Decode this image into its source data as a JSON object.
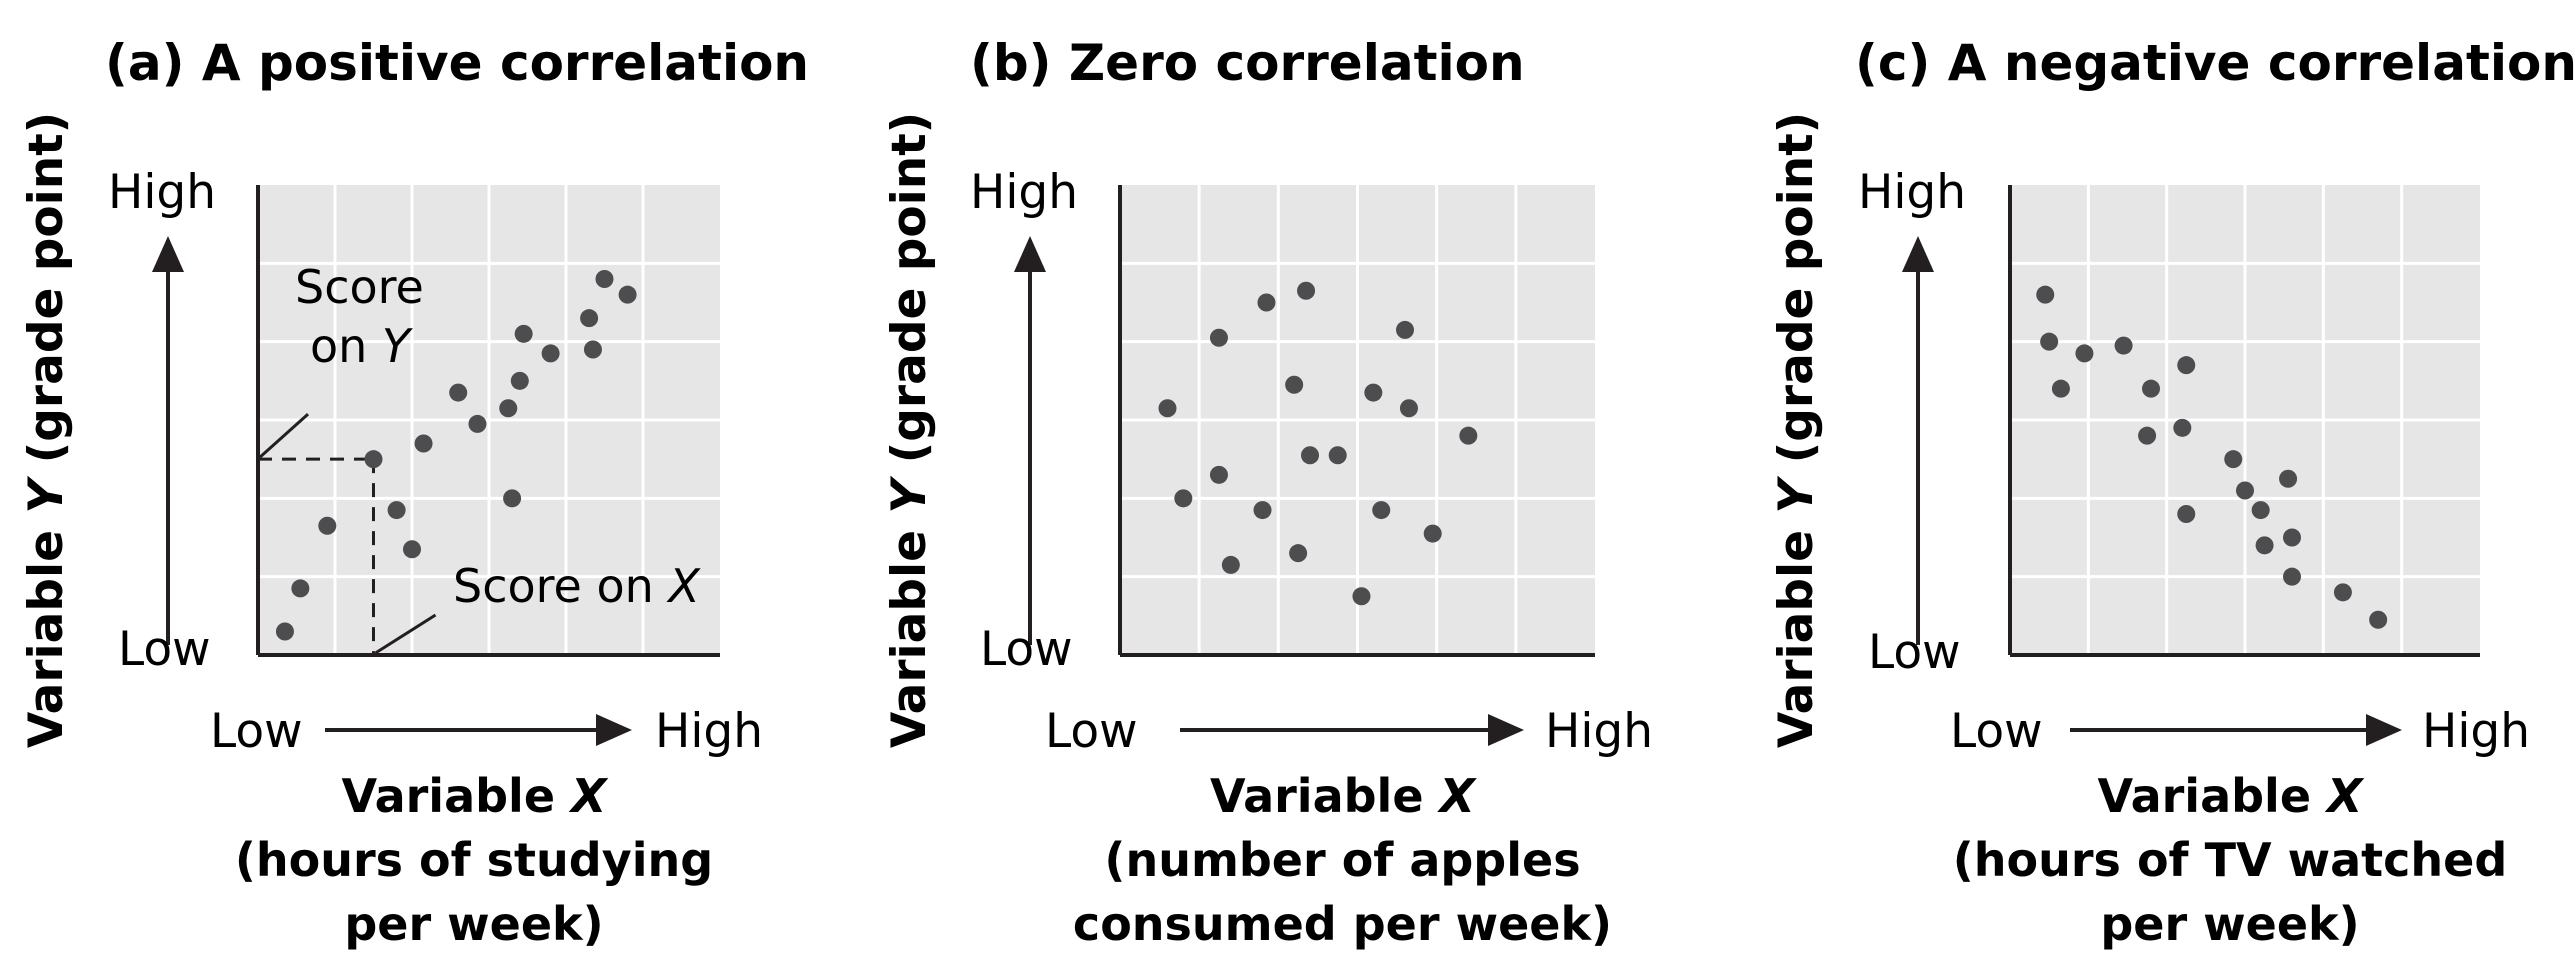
{
  "chart_data": [
    {
      "type": "scatter",
      "panel_label": "(a)",
      "title": "A positive correlation",
      "ylabel": {
        "prefix": "Variable ",
        "var": "Y",
        "suffix": " (grade point)"
      },
      "xlabel": {
        "prefix": "Variable ",
        "var": "X",
        "line2": "(hours of studying",
        "line3": "per week)"
      },
      "y_ticks": {
        "high": "High",
        "low": "Low"
      },
      "x_ticks": {
        "low": "Low",
        "high": "High"
      },
      "xlim": [
        0,
        6
      ],
      "ylim": [
        0,
        6
      ],
      "grid": true,
      "annotations": {
        "score_y_line1": "Score",
        "score_y_line2_prefix": "on ",
        "score_y_var": "Y",
        "score_x_prefix": "Score on ",
        "score_x_var": "X",
        "marked_point": {
          "x": 1.5,
          "y": 2.5
        }
      },
      "points": [
        {
          "x": 0.35,
          "y": 0.3
        },
        {
          "x": 0.55,
          "y": 0.85
        },
        {
          "x": 0.9,
          "y": 1.65
        },
        {
          "x": 1.5,
          "y": 2.5
        },
        {
          "x": 1.8,
          "y": 1.85
        },
        {
          "x": 2.0,
          "y": 1.35
        },
        {
          "x": 2.15,
          "y": 2.7
        },
        {
          "x": 2.6,
          "y": 3.35
        },
        {
          "x": 2.85,
          "y": 2.95
        },
        {
          "x": 3.25,
          "y": 3.15
        },
        {
          "x": 3.3,
          "y": 2.0
        },
        {
          "x": 3.4,
          "y": 3.5
        },
        {
          "x": 3.45,
          "y": 4.1
        },
        {
          "x": 3.8,
          "y": 3.85
        },
        {
          "x": 4.3,
          "y": 4.3
        },
        {
          "x": 4.35,
          "y": 3.9
        },
        {
          "x": 4.5,
          "y": 4.8
        },
        {
          "x": 4.8,
          "y": 4.6
        }
      ]
    },
    {
      "type": "scatter",
      "panel_label": "(b)",
      "title": "Zero correlation",
      "ylabel": {
        "prefix": "Variable ",
        "var": "Y",
        "suffix": " (grade point)"
      },
      "xlabel": {
        "prefix": "Variable ",
        "var": "X",
        "line2": "(number of apples",
        "line3": "consumed per week)"
      },
      "y_ticks": {
        "high": "High",
        "low": "Low"
      },
      "x_ticks": {
        "low": "Low",
        "high": "High"
      },
      "xlim": [
        0,
        6
      ],
      "ylim": [
        0,
        6
      ],
      "grid": true,
      "points": [
        {
          "x": 0.6,
          "y": 3.15
        },
        {
          "x": 0.8,
          "y": 2.0
        },
        {
          "x": 1.25,
          "y": 4.05
        },
        {
          "x": 1.25,
          "y": 2.3
        },
        {
          "x": 1.4,
          "y": 1.15
        },
        {
          "x": 1.8,
          "y": 1.85
        },
        {
          "x": 1.85,
          "y": 4.5
        },
        {
          "x": 2.2,
          "y": 3.45
        },
        {
          "x": 2.25,
          "y": 1.3
        },
        {
          "x": 2.35,
          "y": 4.65
        },
        {
          "x": 2.4,
          "y": 2.55
        },
        {
          "x": 2.75,
          "y": 2.55
        },
        {
          "x": 3.05,
          "y": 0.75
        },
        {
          "x": 3.2,
          "y": 3.35
        },
        {
          "x": 3.3,
          "y": 1.85
        },
        {
          "x": 3.6,
          "y": 4.15
        },
        {
          "x": 3.65,
          "y": 3.15
        },
        {
          "x": 3.95,
          "y": 1.55
        },
        {
          "x": 4.4,
          "y": 2.8
        }
      ]
    },
    {
      "type": "scatter",
      "panel_label": "(c)",
      "title": "A negative correlation",
      "ylabel": {
        "prefix": "Variable ",
        "var": "Y",
        "suffix": " (grade point)"
      },
      "xlabel": {
        "prefix": "Variable ",
        "var": "X",
        "line2": "(hours of TV watched",
        "line3": "per week)"
      },
      "y_ticks": {
        "high": "High",
        "low": "Low"
      },
      "x_ticks": {
        "low": "Low",
        "high": "High"
      },
      "xlim": [
        0,
        6
      ],
      "ylim": [
        0,
        6
      ],
      "grid": true,
      "points": [
        {
          "x": 0.45,
          "y": 4.6
        },
        {
          "x": 0.5,
          "y": 4.0
        },
        {
          "x": 0.65,
          "y": 3.4
        },
        {
          "x": 0.95,
          "y": 3.85
        },
        {
          "x": 1.45,
          "y": 3.95
        },
        {
          "x": 1.75,
          "y": 2.8
        },
        {
          "x": 1.8,
          "y": 3.4
        },
        {
          "x": 2.2,
          "y": 2.9
        },
        {
          "x": 2.25,
          "y": 3.7
        },
        {
          "x": 2.25,
          "y": 1.8
        },
        {
          "x": 2.85,
          "y": 2.5
        },
        {
          "x": 3.0,
          "y": 2.1
        },
        {
          "x": 3.2,
          "y": 1.85
        },
        {
          "x": 3.25,
          "y": 1.4
        },
        {
          "x": 3.55,
          "y": 2.25
        },
        {
          "x": 3.6,
          "y": 1.0
        },
        {
          "x": 3.6,
          "y": 1.5
        },
        {
          "x": 4.25,
          "y": 0.8
        },
        {
          "x": 4.7,
          "y": 0.45
        }
      ]
    }
  ]
}
